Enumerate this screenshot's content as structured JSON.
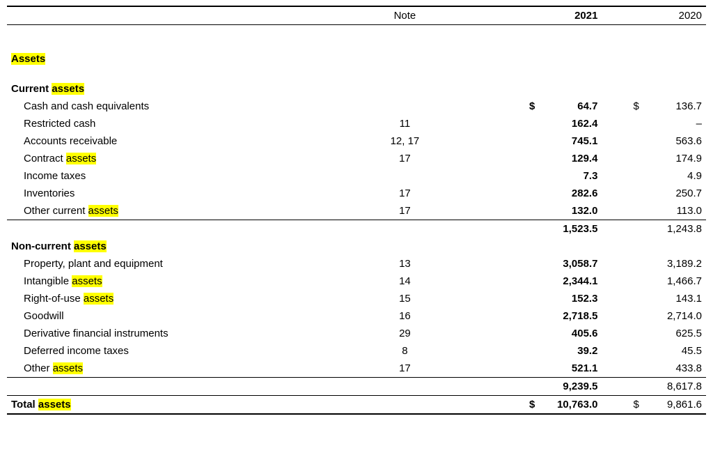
{
  "highlight_color": "#ffff00",
  "headers": {
    "note": "Note",
    "y2021": "2021",
    "y2020": "2020"
  },
  "sections": {
    "assets_title_pre": "Assets",
    "current": {
      "title_pre": "Current ",
      "title_hl": "assets",
      "rows": [
        {
          "label_pre": "Cash and cash equivalents",
          "label_hl": "",
          "note": "",
          "v21": "64.7",
          "v20": "136.7",
          "cur21": "$",
          "cur20": "$"
        },
        {
          "label_pre": "Restricted cash",
          "label_hl": "",
          "note": "11",
          "v21": "162.4",
          "v20": "–"
        },
        {
          "label_pre": "Accounts receivable",
          "label_hl": "",
          "note": "12, 17",
          "v21": "745.1",
          "v20": "563.6"
        },
        {
          "label_pre": "Contract ",
          "label_hl": "assets",
          "note": "17",
          "v21": "129.4",
          "v20": "174.9"
        },
        {
          "label_pre": "Income taxes",
          "label_hl": "",
          "note": "",
          "v21": "7.3",
          "v20": "4.9"
        },
        {
          "label_pre": "Inventories",
          "label_hl": "",
          "note": "17",
          "v21": "282.6",
          "v20": "250.7"
        },
        {
          "label_pre": "Other current ",
          "label_hl": "assets",
          "note": "17",
          "v21": "132.0",
          "v20": "113.0"
        }
      ],
      "subtotal": {
        "v21": "1,523.5",
        "v20": "1,243.8"
      }
    },
    "noncurrent": {
      "title_pre": "Non-current ",
      "title_hl": "assets",
      "rows": [
        {
          "label_pre": "Property, plant and equipment",
          "label_hl": "",
          "note": "13",
          "v21": "3,058.7",
          "v20": "3,189.2"
        },
        {
          "label_pre": "Intangible ",
          "label_hl": "assets",
          "note": "14",
          "v21": "2,344.1",
          "v20": "1,466.7"
        },
        {
          "label_pre": "Right-of-use ",
          "label_hl": "assets",
          "note": "15",
          "v21": "152.3",
          "v20": "143.1"
        },
        {
          "label_pre": "Goodwill",
          "label_hl": "",
          "note": "16",
          "v21": "2,718.5",
          "v20": "2,714.0"
        },
        {
          "label_pre": "Derivative financial instruments",
          "label_hl": "",
          "note": "29",
          "v21": "405.6",
          "v20": "625.5"
        },
        {
          "label_pre": "Deferred income taxes",
          "label_hl": "",
          "note": "8",
          "v21": "39.2",
          "v20": "45.5"
        },
        {
          "label_pre": "Other ",
          "label_hl": "assets",
          "note": "17",
          "v21": "521.1",
          "v20": "433.8"
        }
      ],
      "subtotal": {
        "v21": "9,239.5",
        "v20": "8,617.8"
      }
    },
    "total": {
      "label_pre": "Total ",
      "label_hl": "assets",
      "cur21": "$",
      "v21": "10,763.0",
      "cur20": "$",
      "v20": "9,861.6"
    }
  }
}
